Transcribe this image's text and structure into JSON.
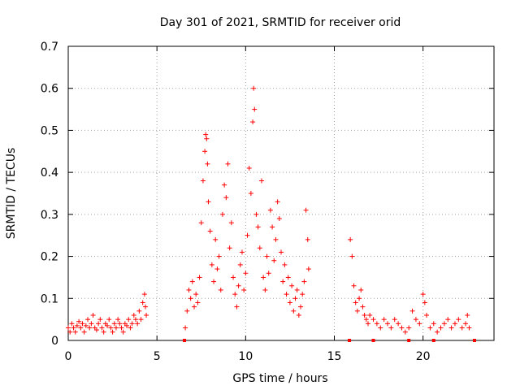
{
  "chart_data": {
    "type": "scatter",
    "title": "Day 301 of 2021, SRMTID for receiver orid",
    "xlabel": "GPS time / hours",
    "ylabel": "SRMTID / TECUs",
    "xlim": [
      0,
      24
    ],
    "ylim": [
      0,
      0.7
    ],
    "xticks": [
      0,
      5,
      10,
      15,
      20
    ],
    "xtick_labels": [
      "0",
      "5",
      "10",
      "15",
      "20"
    ],
    "yticks": [
      0,
      0.1,
      0.2,
      0.3,
      0.4,
      0.5,
      0.6,
      0.7
    ],
    "ytick_labels": [
      "0",
      "0.1",
      "0.2",
      "0.3",
      "0.4",
      "0.5",
      "0.6",
      "0.7"
    ],
    "grid": true,
    "marker": "+",
    "color": "#ff0000",
    "series": [
      {
        "name": "SRMTID",
        "points": [
          [
            0.0,
            0.03
          ],
          [
            0.1,
            0.02
          ],
          [
            0.2,
            0.04
          ],
          [
            0.3,
            0.03
          ],
          [
            0.4,
            0.02
          ],
          [
            0.5,
            0.035
          ],
          [
            0.6,
            0.045
          ],
          [
            0.7,
            0.03
          ],
          [
            0.8,
            0.04
          ],
          [
            0.9,
            0.02
          ],
          [
            1.0,
            0.035
          ],
          [
            1.1,
            0.05
          ],
          [
            1.2,
            0.03
          ],
          [
            1.3,
            0.04
          ],
          [
            1.4,
            0.06
          ],
          [
            1.5,
            0.03
          ],
          [
            1.6,
            0.025
          ],
          [
            1.7,
            0.04
          ],
          [
            1.8,
            0.05
          ],
          [
            1.9,
            0.03
          ],
          [
            2.0,
            0.02
          ],
          [
            2.1,
            0.04
          ],
          [
            2.2,
            0.035
          ],
          [
            2.3,
            0.05
          ],
          [
            2.4,
            0.03
          ],
          [
            2.5,
            0.02
          ],
          [
            2.6,
            0.04
          ],
          [
            2.7,
            0.03
          ],
          [
            2.8,
            0.05
          ],
          [
            2.9,
            0.04
          ],
          [
            3.0,
            0.03
          ],
          [
            3.1,
            0.02
          ],
          [
            3.2,
            0.04
          ],
          [
            3.3,
            0.035
          ],
          [
            3.4,
            0.05
          ],
          [
            3.5,
            0.03
          ],
          [
            3.6,
            0.04
          ],
          [
            3.7,
            0.06
          ],
          [
            3.8,
            0.05
          ],
          [
            3.9,
            0.04
          ],
          [
            4.0,
            0.07
          ],
          [
            4.1,
            0.05
          ],
          [
            4.2,
            0.09
          ],
          [
            4.3,
            0.11
          ],
          [
            4.35,
            0.08
          ],
          [
            4.4,
            0.06
          ],
          [
            6.6,
            0.03
          ],
          [
            6.7,
            0.07
          ],
          [
            6.8,
            0.12
          ],
          [
            6.9,
            0.1
          ],
          [
            7.0,
            0.14
          ],
          [
            7.1,
            0.08
          ],
          [
            7.2,
            0.11
          ],
          [
            7.3,
            0.09
          ],
          [
            7.4,
            0.15
          ],
          [
            7.5,
            0.28
          ],
          [
            7.6,
            0.38
          ],
          [
            7.7,
            0.45
          ],
          [
            7.75,
            0.49
          ],
          [
            7.8,
            0.48
          ],
          [
            7.85,
            0.42
          ],
          [
            7.9,
            0.33
          ],
          [
            8.0,
            0.26
          ],
          [
            8.1,
            0.18
          ],
          [
            8.2,
            0.14
          ],
          [
            8.3,
            0.24
          ],
          [
            8.4,
            0.17
          ],
          [
            8.5,
            0.2
          ],
          [
            8.6,
            0.12
          ],
          [
            8.7,
            0.3
          ],
          [
            8.8,
            0.37
          ],
          [
            8.9,
            0.34
          ],
          [
            9.0,
            0.42
          ],
          [
            9.1,
            0.22
          ],
          [
            9.2,
            0.28
          ],
          [
            9.3,
            0.15
          ],
          [
            9.4,
            0.11
          ],
          [
            9.5,
            0.08
          ],
          [
            9.6,
            0.13
          ],
          [
            9.7,
            0.18
          ],
          [
            9.8,
            0.21
          ],
          [
            9.9,
            0.12
          ],
          [
            10.0,
            0.16
          ],
          [
            10.1,
            0.25
          ],
          [
            10.2,
            0.41
          ],
          [
            10.3,
            0.35
          ],
          [
            10.4,
            0.52
          ],
          [
            10.45,
            0.6
          ],
          [
            10.5,
            0.55
          ],
          [
            10.6,
            0.3
          ],
          [
            10.7,
            0.27
          ],
          [
            10.8,
            0.22
          ],
          [
            10.9,
            0.38
          ],
          [
            11.0,
            0.15
          ],
          [
            11.1,
            0.12
          ],
          [
            11.2,
            0.2
          ],
          [
            11.3,
            0.16
          ],
          [
            11.4,
            0.31
          ],
          [
            11.5,
            0.27
          ],
          [
            11.6,
            0.19
          ],
          [
            11.7,
            0.24
          ],
          [
            11.8,
            0.33
          ],
          [
            11.9,
            0.29
          ],
          [
            12.0,
            0.21
          ],
          [
            12.1,
            0.14
          ],
          [
            12.2,
            0.18
          ],
          [
            12.3,
            0.11
          ],
          [
            12.4,
            0.15
          ],
          [
            12.5,
            0.09
          ],
          [
            12.6,
            0.13
          ],
          [
            12.7,
            0.07
          ],
          [
            12.8,
            0.1
          ],
          [
            12.9,
            0.12
          ],
          [
            13.0,
            0.06
          ],
          [
            13.1,
            0.08
          ],
          [
            13.2,
            0.11
          ],
          [
            13.3,
            0.14
          ],
          [
            13.4,
            0.31
          ],
          [
            13.5,
            0.24
          ],
          [
            13.55,
            0.17
          ],
          [
            15.9,
            0.24
          ],
          [
            16.0,
            0.2
          ],
          [
            16.1,
            0.13
          ],
          [
            16.2,
            0.09
          ],
          [
            16.3,
            0.07
          ],
          [
            16.4,
            0.1
          ],
          [
            16.5,
            0.12
          ],
          [
            16.6,
            0.08
          ],
          [
            16.7,
            0.06
          ],
          [
            16.8,
            0.05
          ],
          [
            16.9,
            0.04
          ],
          [
            17.0,
            0.06
          ],
          [
            17.2,
            0.05
          ],
          [
            17.4,
            0.04
          ],
          [
            17.6,
            0.03
          ],
          [
            17.8,
            0.05
          ],
          [
            18.0,
            0.04
          ],
          [
            18.2,
            0.03
          ],
          [
            18.4,
            0.05
          ],
          [
            18.6,
            0.04
          ],
          [
            18.8,
            0.03
          ],
          [
            19.0,
            0.02
          ],
          [
            19.2,
            0.03
          ],
          [
            19.4,
            0.07
          ],
          [
            19.6,
            0.05
          ],
          [
            19.8,
            0.04
          ],
          [
            20.0,
            0.11
          ],
          [
            20.1,
            0.09
          ],
          [
            20.2,
            0.06
          ],
          [
            20.4,
            0.03
          ],
          [
            20.6,
            0.04
          ],
          [
            20.8,
            0.02
          ],
          [
            21.0,
            0.03
          ],
          [
            21.2,
            0.04
          ],
          [
            21.4,
            0.05
          ],
          [
            21.6,
            0.03
          ],
          [
            21.8,
            0.04
          ],
          [
            22.0,
            0.05
          ],
          [
            22.2,
            0.03
          ],
          [
            22.4,
            0.04
          ],
          [
            22.5,
            0.06
          ],
          [
            22.6,
            0.03
          ]
        ]
      }
    ],
    "gap_markers_x": [
      6.55,
      15.85,
      17.2,
      19.2,
      20.6,
      22.9
    ]
  }
}
